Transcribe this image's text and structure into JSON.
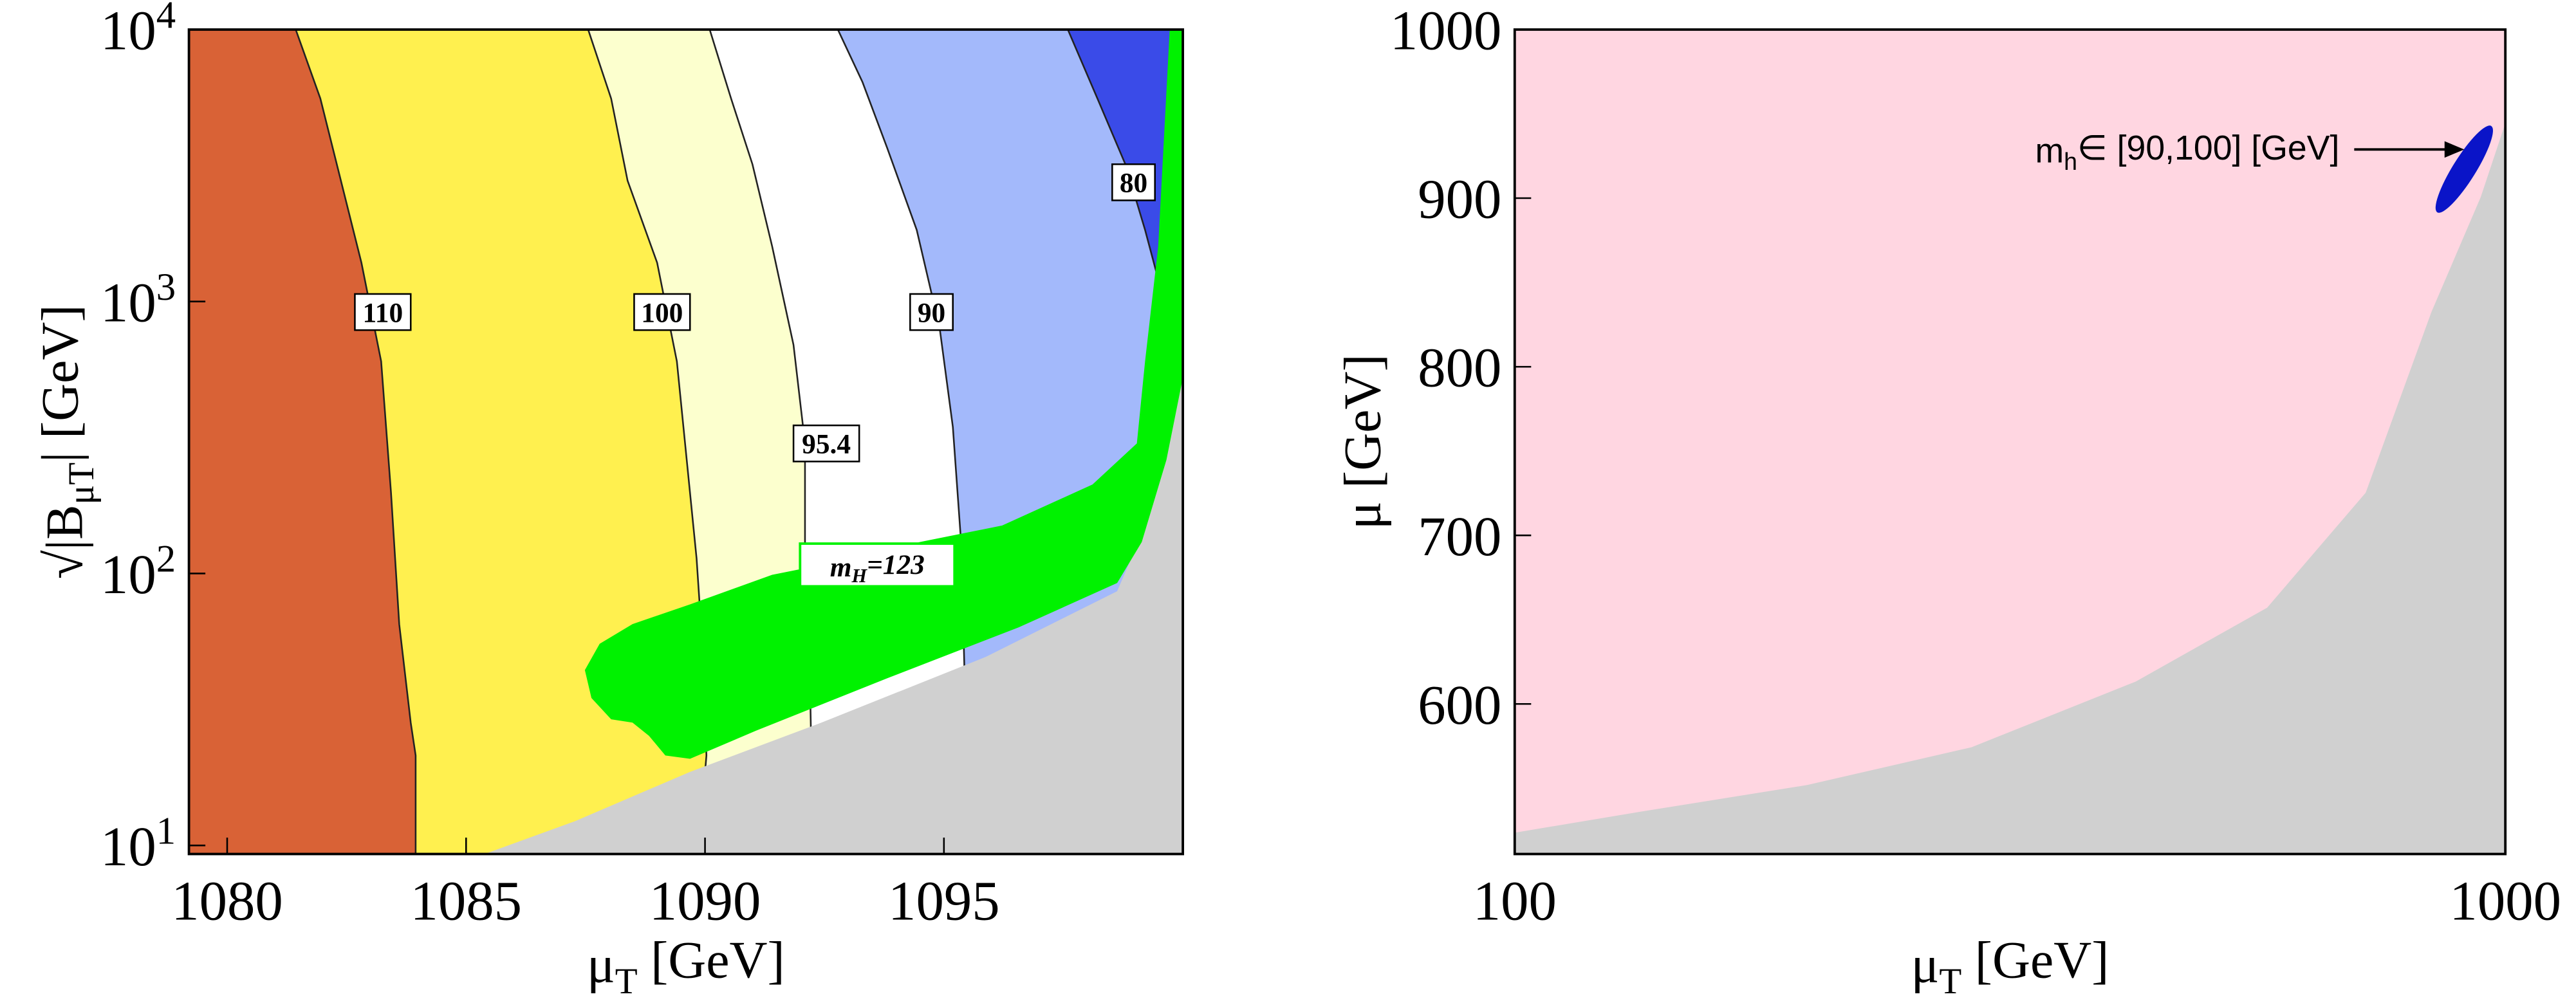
{
  "chart_data": [
    {
      "type": "contour",
      "xlabel": "μ_{T} [GeV]",
      "ylabel": "√|B_{μT}| [GeV]",
      "xlim": [
        1079.2,
        1100.0
      ],
      "xticks": [
        1080,
        1085,
        1090,
        1095
      ],
      "ylim": [
        9.3,
        10000
      ],
      "yscale": "log",
      "yticks": [
        {
          "value": 10,
          "label": "10^{1}"
        },
        {
          "value": 100,
          "label": "10^{2}"
        },
        {
          "value": 1000,
          "label": "10^{3}"
        },
        {
          "value": 10000,
          "label": "10^{4}"
        }
      ],
      "contours": [
        {
          "level": 110
        },
        {
          "level": 100
        },
        {
          "level": 95.4
        },
        {
          "level": 90
        },
        {
          "level": 80
        }
      ],
      "annotations": [
        "m_{H}=123"
      ],
      "fill_colors": [
        "#d96236",
        "#fff04f",
        "#fcffce",
        "#ffffff",
        "#a3b9fb",
        "#3a4be8",
        "#d0d0d0",
        "#00f200"
      ]
    },
    {
      "type": "region",
      "xlabel": "μ_{T} [GeV]",
      "ylabel": "μ [GeV]",
      "xlim": [
        100,
        1000
      ],
      "xscale": "log",
      "xticks": [
        100,
        1000
      ],
      "ylim": [
        511,
        1000
      ],
      "yticks": [
        600,
        700,
        800,
        900,
        1000
      ],
      "annotations": [
        "m_{h}∈ [90,100] [GeV]"
      ],
      "fill_colors": [
        "#ffd6e1",
        "#d0d0d0",
        "#0a14c8"
      ]
    }
  ]
}
